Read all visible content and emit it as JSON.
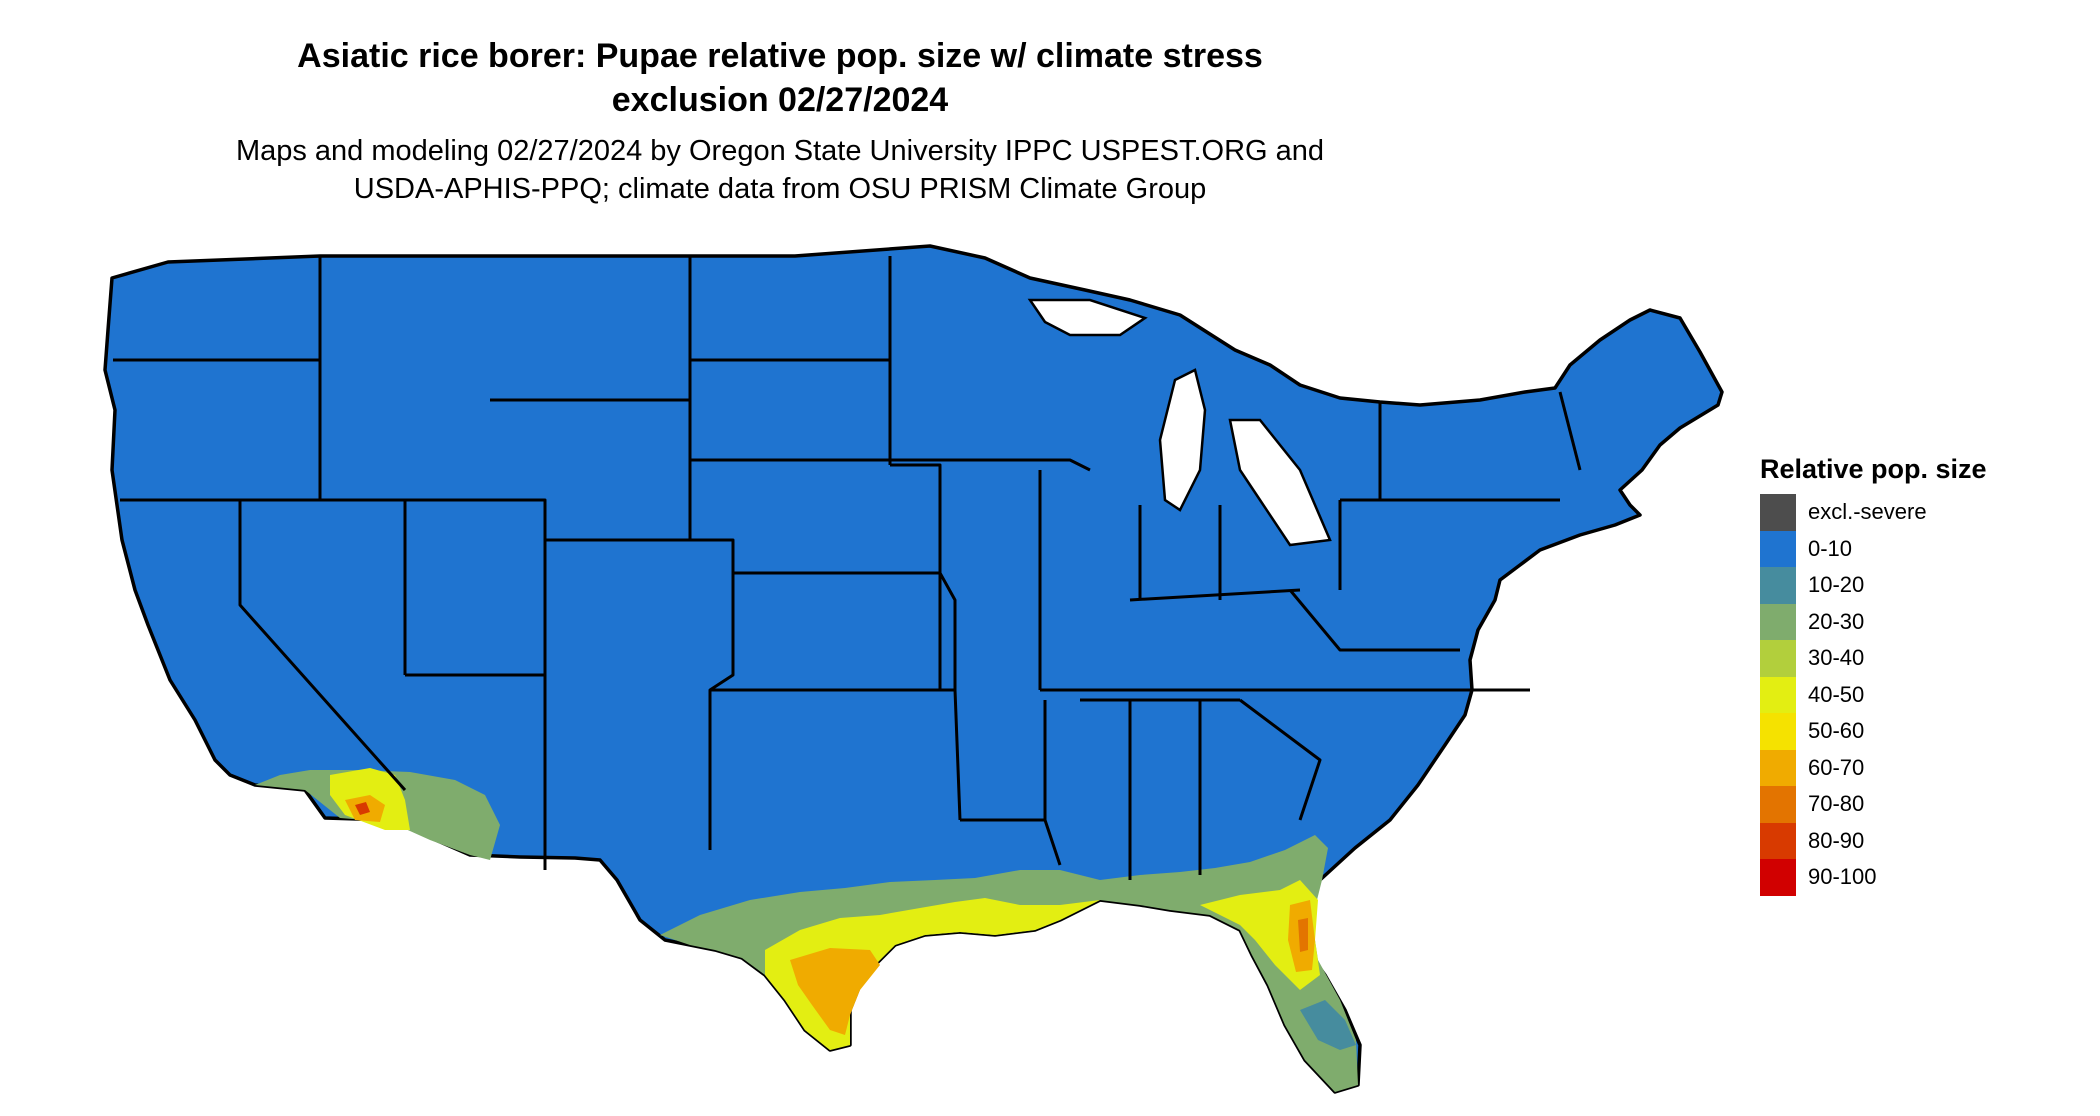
{
  "title": {
    "line1": "Asiatic rice borer: Pupae relative pop. size w/ climate stress",
    "line2": "exclusion 02/27/2024"
  },
  "subtitle": {
    "line1": "Maps and modeling 02/27/2024 by Oregon State University IPPC USPEST.ORG and",
    "line2": "USDA-APHIS-PPQ; climate data from OSU PRISM Climate Group"
  },
  "legend": {
    "title": "Relative pop. size",
    "items": [
      {
        "label": "excl.-severe",
        "color": "#4d4d4d"
      },
      {
        "label": "0-10",
        "color": "#1f74d0"
      },
      {
        "label": "10-20",
        "color": "#468c9e"
      },
      {
        "label": "20-30",
        "color": "#7fac6d"
      },
      {
        "label": "30-40",
        "color": "#b2cf3c"
      },
      {
        "label": "40-50",
        "color": "#e3ee12"
      },
      {
        "label": "50-60",
        "color": "#f5e200"
      },
      {
        "label": "60-70",
        "color": "#f0ab00"
      },
      {
        "label": "70-80",
        "color": "#e37400"
      },
      {
        "label": "80-90",
        "color": "#d83a00"
      },
      {
        "label": "90-100",
        "color": "#d10000"
      }
    ]
  },
  "colors": {
    "base": "#1f74d0",
    "border": "#000000"
  }
}
